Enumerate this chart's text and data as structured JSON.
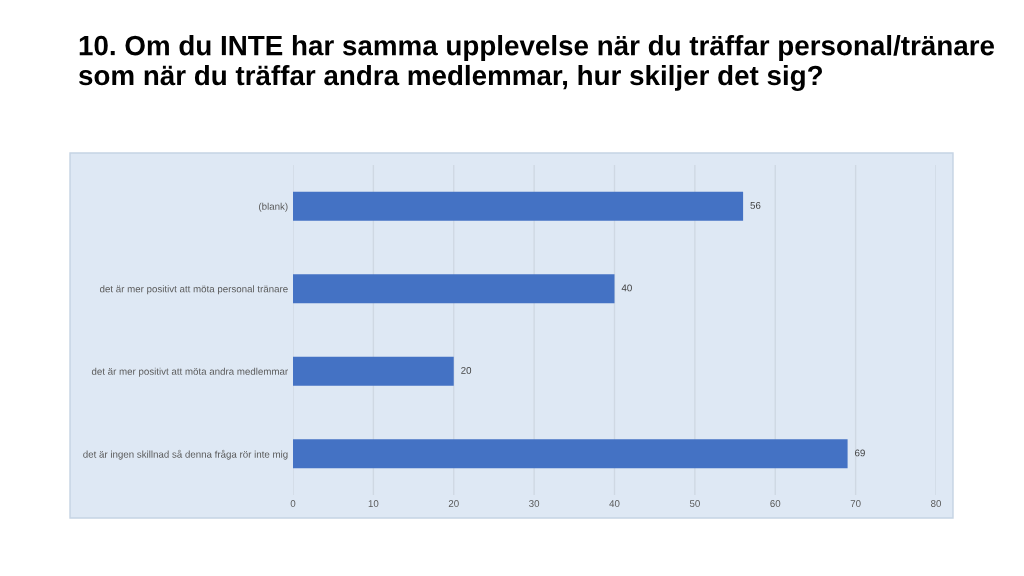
{
  "chart_data": {
    "type": "bar",
    "orientation": "horizontal",
    "title": "10. Om du INTE har samma upplevelse när du träffar personal/tränare som när du träffar andra medlemmar, hur skiljer det sig?",
    "categories": [
      "(blank)",
      "det är mer positivt att möta personal tränare",
      "det är mer positivt att möta andra medlemmar",
      "det är ingen skillnad så denna fråga rör inte mig"
    ],
    "values": [
      56,
      40,
      20,
      69
    ],
    "color": "#4472c4",
    "xlim": [
      0,
      80
    ],
    "xticks": [
      0,
      10,
      20,
      30,
      40,
      50,
      60,
      70,
      80
    ],
    "grid": "x",
    "data_labels": true
  }
}
